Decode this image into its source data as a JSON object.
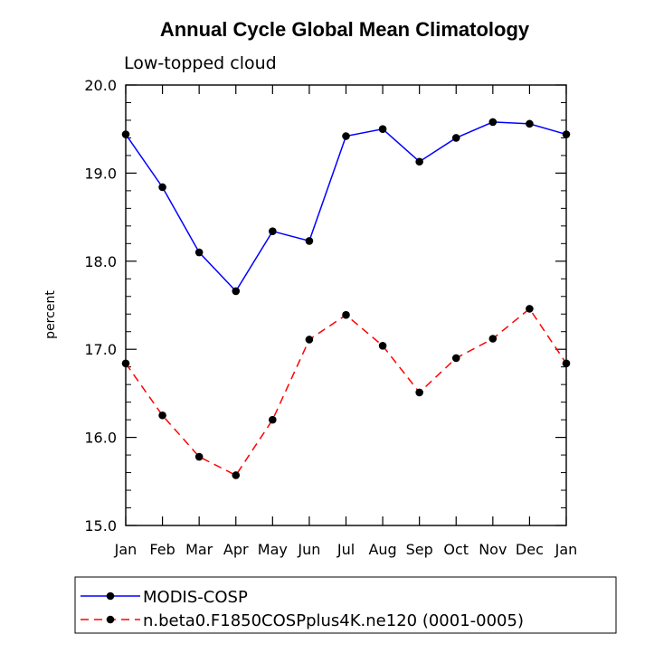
{
  "chart_data": {
    "type": "line",
    "title": "Annual Cycle Global Mean Climatology",
    "subtitle": "Low-topped cloud",
    "xlabel": "",
    "ylabel": "percent",
    "ylim": [
      15.0,
      20.0
    ],
    "categories": [
      "Jan",
      "Feb",
      "Mar",
      "Apr",
      "May",
      "Jun",
      "Jul",
      "Aug",
      "Sep",
      "Oct",
      "Nov",
      "Dec",
      "Jan"
    ],
    "yticks": [
      "15.0",
      "16.0",
      "17.0",
      "18.0",
      "19.0",
      "20.0"
    ],
    "series": [
      {
        "name": "MODIS-COSP",
        "color": "#0000ff",
        "dash": "solid",
        "values": [
          19.44,
          18.84,
          18.1,
          17.66,
          18.34,
          18.23,
          19.42,
          19.5,
          19.13,
          19.4,
          19.58,
          19.56,
          19.44
        ]
      },
      {
        "name": "n.beta0.F1850COSPplus4K.ne120 (0001-0005)",
        "color": "#ff0000",
        "dash": "dashed",
        "values": [
          16.84,
          16.25,
          15.78,
          15.57,
          16.2,
          17.11,
          17.39,
          17.04,
          16.51,
          16.9,
          17.12,
          17.46,
          16.84
        ]
      }
    ]
  }
}
